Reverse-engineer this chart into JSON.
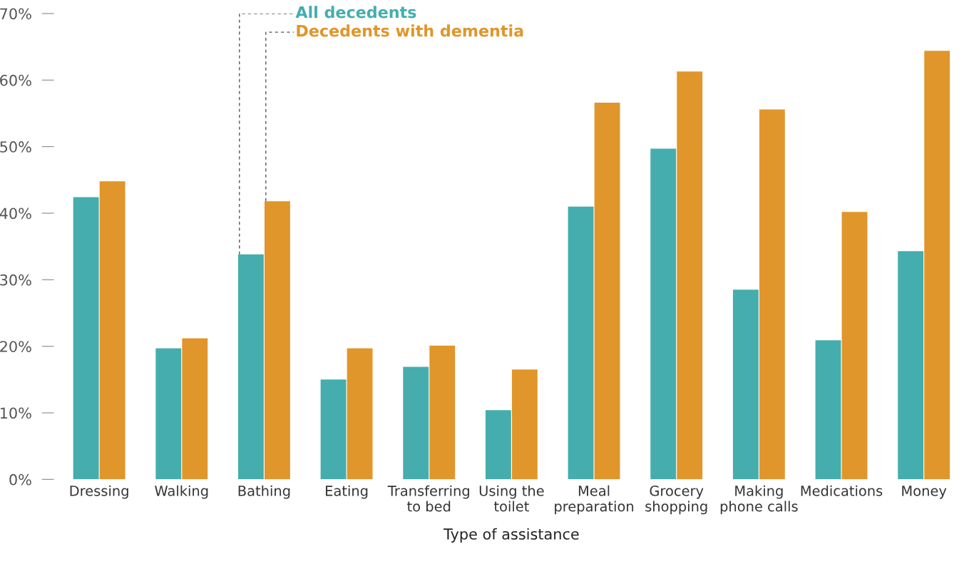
{
  "chart_data": {
    "type": "bar",
    "xlabel": "Type of assistance",
    "categories": [
      "Dressing",
      "Walking",
      "Bathing",
      "Eating",
      "Transferring\nto bed",
      "Using the\ntoilet",
      "Meal\npreparation",
      "Grocery\nshopping",
      "Making\nphone calls",
      "Medications",
      "Money"
    ],
    "series": [
      {
        "name": "All decedents",
        "color": "#45adad",
        "values": [
          42.4,
          19.7,
          33.8,
          15.0,
          16.9,
          10.4,
          41.0,
          49.7,
          28.5,
          20.9,
          34.3
        ]
      },
      {
        "name": "Decedents with dementia",
        "color": "#e0962a",
        "values": [
          44.8,
          21.2,
          41.8,
          19.7,
          20.1,
          16.5,
          56.6,
          61.3,
          55.6,
          40.2,
          64.4
        ]
      }
    ],
    "ylim": [
      0,
      70
    ],
    "yticks": [
      {
        "value": 0,
        "label": "0%"
      },
      {
        "value": 10,
        "label": "10%"
      },
      {
        "value": 20,
        "label": "20%"
      },
      {
        "value": 30,
        "label": "30%"
      },
      {
        "value": 40,
        "label": "40%"
      },
      {
        "value": 50,
        "label": "50%"
      },
      {
        "value": 60,
        "label": "60%"
      },
      {
        "value": 70,
        "label": "70%"
      }
    ],
    "grid": false
  }
}
